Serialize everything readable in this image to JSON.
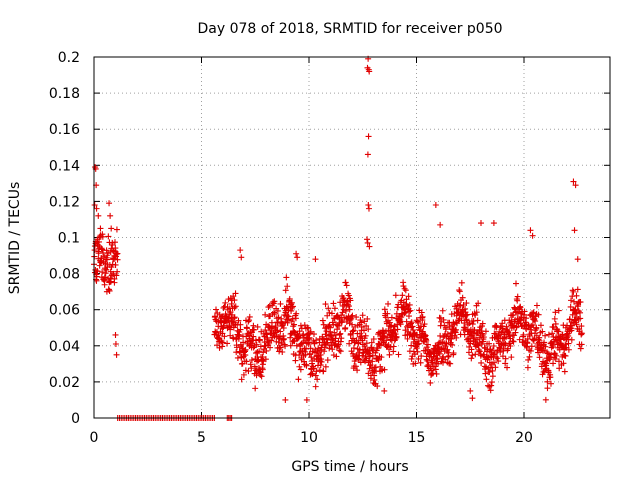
{
  "chart_data": {
    "type": "scatter",
    "title": "Day 078 of 2018, SRMTID for receiver p050",
    "xlabel": "GPS time / hours",
    "ylabel": "SRMTID / TECUs",
    "xlim": [
      0,
      24
    ],
    "ylim": [
      0,
      0.2
    ],
    "xticks": [
      0,
      5,
      10,
      15,
      20
    ],
    "xtick_labels": [
      "0",
      "5",
      "10",
      "15",
      "20"
    ],
    "yticks": [
      0,
      0.02,
      0.04,
      0.06,
      0.08,
      0.1,
      0.12,
      0.14,
      0.16,
      0.18,
      0.2
    ],
    "ytick_labels": [
      "0",
      "0.02",
      "0.04",
      "0.06",
      "0.08",
      "0.1",
      "0.12",
      "0.14",
      "0.16",
      "0.18",
      "0.2"
    ],
    "grid": true,
    "marker": "+",
    "series": [
      {
        "name": "SRMTID",
        "color": "#e00000",
        "segments": [
          {
            "x_start": 0.0,
            "x_end": 1.1,
            "y_min": 0.03,
            "y_max": 0.12,
            "baseline": 0.08
          },
          {
            "x_start": 5.6,
            "x_end": 22.7,
            "y_min": 0.01,
            "y_max": 0.1,
            "baseline": 0.045
          }
        ],
        "zero_segments": [
          {
            "x_start": 1.1,
            "x_end": 5.6
          },
          {
            "x_start": 6.2,
            "x_end": 6.4
          }
        ],
        "points": [
          [
            0.05,
            0.139
          ],
          [
            0.08,
            0.138
          ],
          [
            0.1,
            0.129
          ],
          [
            0.03,
            0.118
          ],
          [
            0.12,
            0.116
          ],
          [
            0.2,
            0.112
          ],
          [
            0.3,
            0.105
          ],
          [
            0.35,
            0.094
          ],
          [
            0.5,
            0.078
          ],
          [
            0.6,
            0.07
          ],
          [
            0.7,
            0.119
          ],
          [
            0.75,
            0.112
          ],
          [
            0.8,
            0.105
          ],
          [
            0.85,
            0.097
          ],
          [
            0.9,
            0.088
          ],
          [
            0.95,
            0.075
          ],
          [
            1.0,
            0.046
          ],
          [
            1.02,
            0.041
          ],
          [
            1.05,
            0.035
          ],
          [
            12.75,
            0.199
          ],
          [
            12.72,
            0.194
          ],
          [
            12.78,
            0.193
          ],
          [
            12.8,
            0.192
          ],
          [
            12.77,
            0.156
          ],
          [
            12.74,
            0.146
          ],
          [
            12.76,
            0.118
          ],
          [
            12.79,
            0.116
          ],
          [
            12.7,
            0.099
          ],
          [
            12.73,
            0.097
          ],
          [
            12.81,
            0.095
          ],
          [
            15.9,
            0.118
          ],
          [
            16.1,
            0.107
          ],
          [
            18.0,
            0.108
          ],
          [
            18.6,
            0.108
          ],
          [
            20.3,
            0.104
          ],
          [
            20.4,
            0.101
          ],
          [
            22.3,
            0.131
          ],
          [
            22.4,
            0.129
          ],
          [
            22.35,
            0.104
          ],
          [
            22.5,
            0.088
          ],
          [
            9.4,
            0.091
          ],
          [
            9.45,
            0.089
          ],
          [
            6.8,
            0.093
          ],
          [
            6.85,
            0.089
          ],
          [
            10.3,
            0.088
          ],
          [
            17.5,
            0.015
          ],
          [
            17.6,
            0.011
          ],
          [
            13.5,
            0.015
          ],
          [
            9.9,
            0.01
          ],
          [
            8.9,
            0.01
          ]
        ]
      }
    ]
  }
}
